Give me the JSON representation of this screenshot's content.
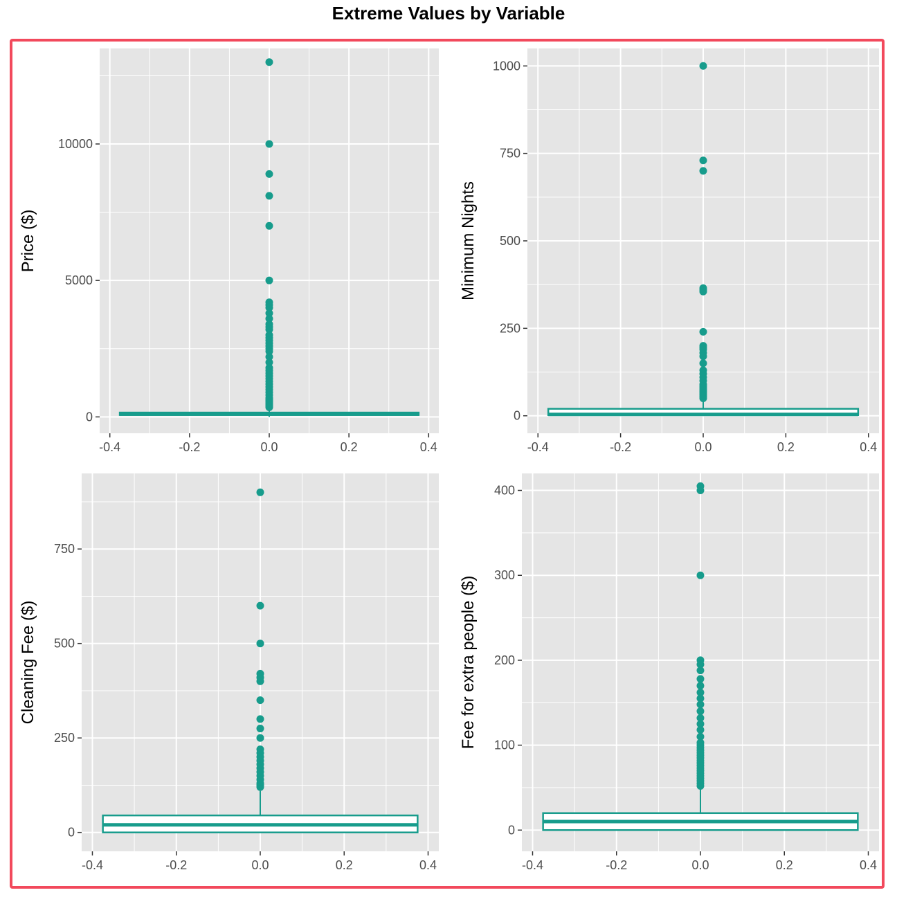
{
  "title": "Extreme Values by Variable",
  "colors": {
    "accent": "#179c8c",
    "panel_bg": "#e5e5e5",
    "grid": "#ffffff",
    "frame": "#f2495c"
  },
  "chart_data": [
    {
      "type": "box",
      "ylabel": "Price ($)",
      "xlim": [
        -0.4,
        0.4
      ],
      "xticks": [
        "-0.4",
        "-0.2",
        "0.0",
        "0.2",
        "0.4"
      ],
      "ylim": [
        -600,
        13500
      ],
      "yticks": [
        0,
        5000,
        10000
      ],
      "ytick_labels": [
        "0",
        "5000",
        "10000"
      ],
      "box": {
        "q1": 69,
        "median": 100,
        "q3": 159,
        "whisker_low": 0,
        "whisker_high": 290
      },
      "outliers": [
        13000,
        10000,
        8900,
        8100,
        7000,
        5000,
        4200,
        4100,
        4000,
        3800,
        3600,
        3400,
        3300,
        3200,
        3000,
        2900,
        2800,
        2700,
        2600,
        2500,
        2400,
        2200,
        2000,
        1800,
        1700,
        1600,
        1500,
        1400,
        1300,
        1200,
        1100,
        1000,
        900,
        800,
        700,
        650,
        600,
        550,
        500,
        450,
        400,
        350
      ]
    },
    {
      "type": "box",
      "ylabel": "Minimum Nights",
      "xlim": [
        -0.4,
        0.4
      ],
      "xticks": [
        "-0.4",
        "-0.2",
        "0.0",
        "0.2",
        "0.4"
      ],
      "ylim": [
        -50,
        1050
      ],
      "yticks": [
        0,
        250,
        500,
        750,
        1000
      ],
      "ytick_labels": [
        "0",
        "250",
        "500",
        "750",
        "1000"
      ],
      "box": {
        "q1": 2,
        "median": 4,
        "q3": 20,
        "whisker_low": 1,
        "whisker_high": 47
      },
      "outliers": [
        1000,
        730,
        700,
        365,
        360,
        355,
        240,
        200,
        195,
        190,
        180,
        170,
        150,
        130,
        120,
        110,
        100,
        90,
        85,
        80,
        75,
        70,
        65,
        60,
        55,
        50
      ]
    },
    {
      "type": "box",
      "ylabel": "Cleaning Fee ($)",
      "xlim": [
        -0.4,
        0.4
      ],
      "xticks": [
        "-0.4",
        "-0.2",
        "0.0",
        "0.2",
        "0.4"
      ],
      "ylim": [
        -50,
        950
      ],
      "yticks": [
        0,
        250,
        500,
        750
      ],
      "ytick_labels": [
        "0",
        "250",
        "500",
        "750"
      ],
      "box": {
        "q1": 0,
        "median": 20,
        "q3": 45,
        "whisker_low": 0,
        "whisker_high": 110
      },
      "outliers": [
        900,
        600,
        500,
        420,
        410,
        400,
        350,
        300,
        275,
        250,
        220,
        210,
        200,
        190,
        180,
        170,
        160,
        150,
        140,
        130,
        125,
        120
      ]
    },
    {
      "type": "box",
      "ylabel": "Fee for extra people ($)",
      "xlim": [
        -0.4,
        0.4
      ],
      "xticks": [
        "-0.4",
        "-0.2",
        "0.0",
        "0.2",
        "0.4"
      ],
      "ylim": [
        -25,
        420
      ],
      "yticks": [
        0,
        100,
        200,
        300,
        400
      ],
      "ytick_labels": [
        "0",
        "100",
        "200",
        "300",
        "400"
      ],
      "box": {
        "q1": 0,
        "median": 10,
        "q3": 20,
        "whisker_low": 0,
        "whisker_high": 50
      },
      "outliers": [
        405,
        400,
        300,
        200,
        195,
        188,
        178,
        170,
        162,
        155,
        148,
        140,
        132,
        125,
        118,
        110,
        103,
        100,
        97,
        94,
        91,
        88,
        85,
        82,
        79,
        76,
        73,
        70,
        67,
        64,
        61,
        58,
        55,
        52
      ]
    }
  ]
}
